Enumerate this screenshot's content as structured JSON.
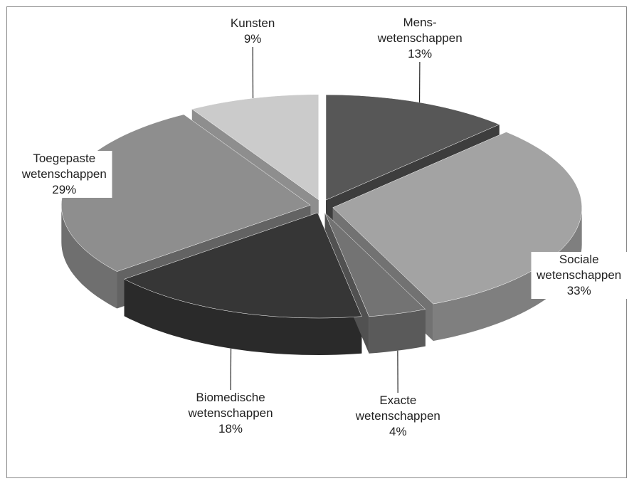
{
  "chart_data": {
    "type": "pie3d",
    "categories": [
      "Mens-wetenschappen",
      "Sociale wetenschappen",
      "Exacte wetenschappen",
      "Biomedische wetenschappen",
      "Toegepaste wetenschappen",
      "Kunsten"
    ],
    "values": [
      13,
      33,
      4,
      18,
      29,
      9
    ],
    "value_labels": [
      "13%",
      "33%",
      "4%",
      "18%",
      "29%",
      "9%"
    ],
    "colors": [
      "#575757",
      "#a3a3a3",
      "#737373",
      "#363636",
      "#8e8e8e",
      "#cbcbcb"
    ]
  }
}
